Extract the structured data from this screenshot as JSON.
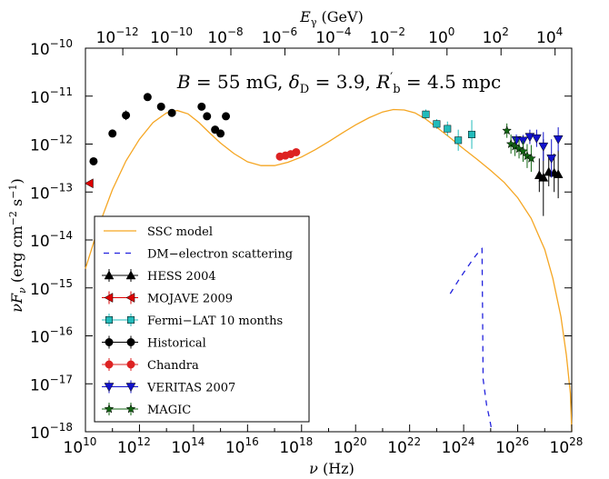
{
  "chart_data": {
    "type": "scatter",
    "xlabel_main": "ν",
    "xlabel_unit": " (Hz)",
    "ylabel_main": "νF",
    "ylabel_sub": "ν",
    "ylabel_unit_a": " (erg cm",
    "ylabel_unit_exp1": "−2",
    "ylabel_unit_b": " s",
    "ylabel_unit_exp2": "−1",
    "ylabel_unit_c": ")",
    "top_xlabel_main": "E",
    "top_xlabel_sub": "γ",
    "top_xlabel_unit": " (GeV)",
    "annotation": "B = 55 mG, δD = 3.9, R′b = 4.5 mpc",
    "x_scale": "log",
    "y_scale": "log",
    "xlim_log10": [
      10,
      28
    ],
    "ylim_log10": [
      -18,
      -10
    ],
    "x_ticks": [
      {
        "base": "10",
        "exp": "10",
        "pos": 10
      },
      {
        "base": "10",
        "exp": "12",
        "pos": 12
      },
      {
        "base": "10",
        "exp": "14",
        "pos": 14
      },
      {
        "base": "10",
        "exp": "16",
        "pos": 16
      },
      {
        "base": "10",
        "exp": "18",
        "pos": 18
      },
      {
        "base": "10",
        "exp": "20",
        "pos": 20
      },
      {
        "base": "10",
        "exp": "22",
        "pos": 22
      },
      {
        "base": "10",
        "exp": "24",
        "pos": 24
      },
      {
        "base": "10",
        "exp": "26",
        "pos": 26
      },
      {
        "base": "10",
        "exp": "28",
        "pos": 28
      }
    ],
    "y_ticks": [
      {
        "base": "10",
        "exp": "−10",
        "pos": -10
      },
      {
        "base": "10",
        "exp": "−11",
        "pos": -11
      },
      {
        "base": "10",
        "exp": "−12",
        "pos": -12
      },
      {
        "base": "10",
        "exp": "−13",
        "pos": -13
      },
      {
        "base": "10",
        "exp": "−14",
        "pos": -14
      },
      {
        "base": "10",
        "exp": "−15",
        "pos": -15
      },
      {
        "base": "10",
        "exp": "−16",
        "pos": -16
      },
      {
        "base": "10",
        "exp": "−17",
        "pos": -17
      },
      {
        "base": "10",
        "exp": "−18",
        "pos": -18
      }
    ],
    "top_ticks": [
      {
        "base": "10",
        "exp": "−12",
        "pos": 11.383
      },
      {
        "base": "10",
        "exp": "−10",
        "pos": 13.383
      },
      {
        "base": "10",
        "exp": "−8",
        "pos": 15.383
      },
      {
        "base": "10",
        "exp": "−6",
        "pos": 17.383
      },
      {
        "base": "10",
        "exp": "−4",
        "pos": 19.383
      },
      {
        "base": "10",
        "exp": "−2",
        "pos": 21.383
      },
      {
        "base": "10",
        "exp": "0",
        "pos": 23.383
      },
      {
        "base": "10",
        "exp": "2",
        "pos": 25.383
      },
      {
        "base": "10",
        "exp": "4",
        "pos": 27.383
      }
    ],
    "series": [
      {
        "name": "SSC model",
        "kind": "line",
        "color": "#f5a623",
        "dash": "",
        "points": [
          [
            10.0,
            -14.6
          ],
          [
            10.5,
            -13.7
          ],
          [
            11.0,
            -12.95
          ],
          [
            11.5,
            -12.35
          ],
          [
            12.0,
            -11.9
          ],
          [
            12.5,
            -11.55
          ],
          [
            13.0,
            -11.35
          ],
          [
            13.4,
            -11.3
          ],
          [
            13.8,
            -11.37
          ],
          [
            14.2,
            -11.55
          ],
          [
            14.6,
            -11.77
          ],
          [
            15.0,
            -11.98
          ],
          [
            15.5,
            -12.2
          ],
          [
            16.0,
            -12.37
          ],
          [
            16.5,
            -12.45
          ],
          [
            17.0,
            -12.45
          ],
          [
            17.5,
            -12.38
          ],
          [
            18.0,
            -12.27
          ],
          [
            18.5,
            -12.12
          ],
          [
            19.0,
            -11.95
          ],
          [
            19.5,
            -11.77
          ],
          [
            20.0,
            -11.6
          ],
          [
            20.5,
            -11.45
          ],
          [
            21.0,
            -11.33
          ],
          [
            21.4,
            -11.28
          ],
          [
            21.8,
            -11.29
          ],
          [
            22.2,
            -11.35
          ],
          [
            22.6,
            -11.48
          ],
          [
            23.0,
            -11.65
          ],
          [
            23.5,
            -11.87
          ],
          [
            24.0,
            -12.1
          ],
          [
            24.5,
            -12.32
          ],
          [
            25.0,
            -12.55
          ],
          [
            25.5,
            -12.8
          ],
          [
            26.0,
            -13.12
          ],
          [
            26.5,
            -13.55
          ],
          [
            27.0,
            -14.2
          ],
          [
            27.3,
            -14.8
          ],
          [
            27.6,
            -15.6
          ],
          [
            27.8,
            -16.4
          ],
          [
            27.95,
            -17.2
          ],
          [
            28.0,
            -18.0
          ]
        ]
      },
      {
        "name": "DM−electron scattering",
        "kind": "line",
        "color": "#2222dd",
        "dash": "6,6",
        "points": [
          [
            23.5,
            -15.12
          ],
          [
            23.8,
            -14.85
          ],
          [
            24.1,
            -14.6
          ],
          [
            24.4,
            -14.36
          ],
          [
            24.6,
            -14.22
          ],
          [
            24.68,
            -14.18
          ],
          [
            24.7,
            -15.5
          ],
          [
            24.72,
            -16.9
          ],
          [
            24.85,
            -17.45
          ],
          [
            24.95,
            -17.7
          ],
          [
            25.05,
            -18.0
          ]
        ]
      },
      {
        "name": "HESS 2004",
        "kind": "points",
        "marker": "triangle-up",
        "color": "#000000",
        "points": [
          [
            26.8,
            -12.65,
            0.35
          ],
          [
            26.95,
            -12.7,
            0.8
          ],
          [
            27.15,
            -12.58,
            0.3
          ],
          [
            27.35,
            -12.6,
            0.4
          ],
          [
            27.5,
            -12.63,
            0.5
          ]
        ]
      },
      {
        "name": "MOJAVE 2009",
        "kind": "points",
        "marker": "triangle-left",
        "color": "#dd0000",
        "points": [
          [
            10.15,
            -12.82,
            0
          ]
        ]
      },
      {
        "name": "Fermi−LAT 10 months",
        "kind": "points",
        "marker": "square",
        "color": "#22bbbb",
        "points": [
          [
            22.6,
            -11.38,
            0.1
          ],
          [
            23.0,
            -11.58,
            0.1
          ],
          [
            23.4,
            -11.68,
            0.15
          ],
          [
            23.8,
            -11.92,
            0.22
          ],
          [
            24.3,
            -11.8,
            0.3
          ]
        ]
      },
      {
        "name": "Historical",
        "kind": "points",
        "marker": "circle",
        "color": "#000000",
        "points": [
          [
            10.3,
            -12.36,
            0
          ],
          [
            11.0,
            -11.78,
            0
          ],
          [
            11.5,
            -11.4,
            0.1
          ],
          [
            12.3,
            -11.02,
            0
          ],
          [
            12.8,
            -11.22,
            0
          ],
          [
            13.2,
            -11.35,
            0
          ],
          [
            14.3,
            -11.22,
            0
          ],
          [
            14.5,
            -11.42,
            0
          ],
          [
            14.8,
            -11.7,
            0
          ],
          [
            15.0,
            -11.78,
            0
          ],
          [
            15.2,
            -11.42,
            0
          ]
        ]
      },
      {
        "name": "Chandra",
        "kind": "points",
        "marker": "circle",
        "color": "#dd2222",
        "points": [
          [
            17.2,
            -12.26,
            0
          ],
          [
            17.4,
            -12.24,
            0
          ],
          [
            17.6,
            -12.21,
            0
          ],
          [
            17.8,
            -12.17,
            0
          ]
        ]
      },
      {
        "name": "VERITAS 2007",
        "kind": "points",
        "marker": "triangle-down",
        "color": "#1111cc",
        "points": [
          [
            25.95,
            -11.92,
            0.12
          ],
          [
            26.2,
            -11.93,
            0.12
          ],
          [
            26.45,
            -11.85,
            0.15
          ],
          [
            26.7,
            -11.88,
            0.18
          ],
          [
            26.95,
            -12.05,
            0.3
          ],
          [
            27.25,
            -12.3,
            0.4
          ],
          [
            27.5,
            -11.9,
            0.25
          ]
        ]
      },
      {
        "name": "MAGIC",
        "kind": "points",
        "marker": "star",
        "color": "#116611",
        "points": [
          [
            25.6,
            -11.72,
            0.15
          ],
          [
            25.75,
            -12.0,
            0.2
          ],
          [
            25.9,
            -12.05,
            0.2
          ],
          [
            26.05,
            -12.1,
            0.2
          ],
          [
            26.2,
            -12.15,
            0.22
          ],
          [
            26.35,
            -12.25,
            0.25
          ],
          [
            26.5,
            -12.3,
            0.28
          ]
        ]
      }
    ],
    "legend": [
      {
        "label": "SSC model",
        "kind": "line",
        "color": "#f5a623",
        "dash": ""
      },
      {
        "label": "DM−electron scattering",
        "kind": "line",
        "color": "#2222dd",
        "dash": "6,6"
      },
      {
        "label": "HESS 2004",
        "kind": "marker",
        "marker": "triangle-up",
        "color": "#000000"
      },
      {
        "label": "MOJAVE 2009",
        "kind": "marker",
        "marker": "triangle-left",
        "color": "#dd0000"
      },
      {
        "label": "Fermi−LAT 10 months",
        "kind": "marker",
        "marker": "square",
        "color": "#22bbbb"
      },
      {
        "label": "Historical",
        "kind": "marker",
        "marker": "circle",
        "color": "#000000"
      },
      {
        "label": "Chandra",
        "kind": "marker",
        "marker": "circle",
        "color": "#dd2222"
      },
      {
        "label": "VERITAS 2007",
        "kind": "marker",
        "marker": "triangle-down",
        "color": "#1111cc"
      },
      {
        "label": "MAGIC",
        "kind": "marker",
        "marker": "star",
        "color": "#116611"
      }
    ],
    "legend_placement": "lower-left",
    "grid": false
  }
}
